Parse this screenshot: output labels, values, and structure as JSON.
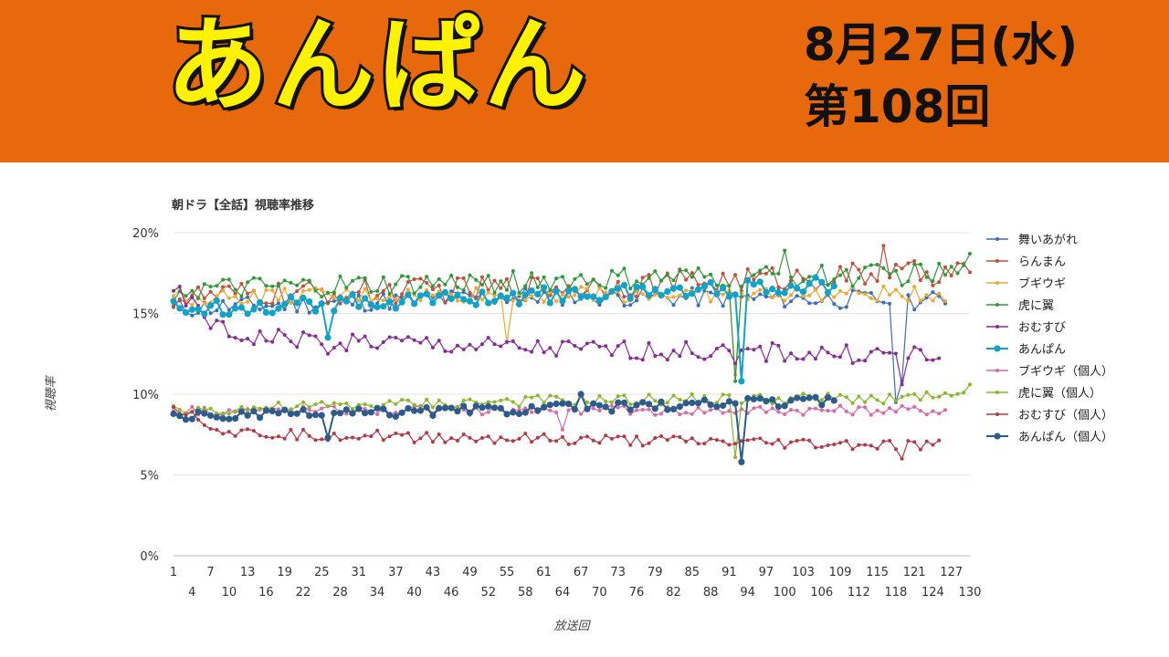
{
  "header": {
    "show_title": "あんぱん",
    "date": "8月27日(水)",
    "episode": "第108回"
  },
  "chart_data": {
    "type": "line",
    "title": "朝ドラ【全話】視聴率推移",
    "xlabel": "放送回",
    "ylabel": "視聴率",
    "ylim": [
      0,
      20
    ],
    "xlim": [
      1,
      130
    ],
    "y_ticks": [
      "0%",
      "5%",
      "10%",
      "15%",
      "20%"
    ],
    "x_ticks_row1": [
      1,
      7,
      13,
      19,
      25,
      31,
      37,
      43,
      49,
      55,
      61,
      67,
      73,
      79,
      85,
      91,
      97,
      103,
      109,
      115,
      121,
      127
    ],
    "x_ticks_row2": [
      4,
      10,
      16,
      22,
      28,
      34,
      40,
      46,
      52,
      58,
      64,
      70,
      76,
      82,
      88,
      94,
      100,
      106,
      112,
      118,
      124,
      130
    ],
    "grid": true,
    "legend_position": "right",
    "series": [
      {
        "name": "舞いあがれ",
        "color": "#3a6fb5",
        "count": 126,
        "base": 15.8,
        "trend": [
          [
            1,
            15.3
          ],
          [
            60,
            16.1
          ],
          [
            126,
            15.8
          ]
        ],
        "noise": 0.6,
        "dips": [
          [
            118,
            9.5
          ],
          [
            119,
            10.8
          ]
        ]
      },
      {
        "name": "らんまん",
        "color": "#c0503a",
        "count": 130,
        "base": 16.5,
        "trend": [
          [
            1,
            16.0
          ],
          [
            60,
            16.6
          ],
          [
            130,
            17.6
          ]
        ],
        "noise": 0.8,
        "dips": [
          [
            116,
            19.2
          ]
        ]
      },
      {
        "name": "ブギウギ",
        "color": "#f0a830",
        "count": 126,
        "base": 16.0,
        "trend": [
          [
            1,
            16.0
          ],
          [
            60,
            16.2
          ],
          [
            126,
            16.2
          ]
        ],
        "noise": 0.5,
        "dips": [
          [
            55,
            13.2
          ],
          [
            92,
            11.2
          ]
        ]
      },
      {
        "name": "虎に翼",
        "color": "#2e9a3a",
        "count": 130,
        "base": 16.7,
        "trend": [
          [
            1,
            16.4
          ],
          [
            60,
            17.0
          ],
          [
            130,
            17.5
          ]
        ],
        "noise": 0.7,
        "dips": [
          [
            92,
            10.8
          ],
          [
            100,
            18.9
          ],
          [
            130,
            18.7
          ]
        ]
      },
      {
        "name": "おむすび",
        "color": "#8a2a9a",
        "count": 125,
        "base": 13.0,
        "trend": [
          [
            1,
            16.4
          ],
          [
            10,
            13.6
          ],
          [
            60,
            12.8
          ],
          [
            125,
            12.4
          ]
        ],
        "noise": 0.6,
        "dips": [
          [
            26,
            12.5
          ],
          [
            92,
            11.9
          ],
          [
            119,
            10.6
          ]
        ]
      },
      {
        "name": "あんぱん",
        "color": "#10a3c8",
        "count": 108,
        "base": 15.8,
        "trend": [
          [
            1,
            15.3
          ],
          [
            60,
            16.1
          ],
          [
            108,
            16.8
          ]
        ],
        "noise": 0.5,
        "dips": [
          [
            26,
            13.5
          ],
          [
            93,
            10.8
          ]
        ]
      },
      {
        "name": "ブギウギ（個人）",
        "color": "#d86aa8",
        "count": 126,
        "base": 9.0,
        "trend": [
          [
            1,
            9.0
          ],
          [
            60,
            9.0
          ],
          [
            126,
            9.0
          ]
        ],
        "noise": 0.3,
        "dips": [
          [
            64,
            7.8
          ]
        ]
      },
      {
        "name": "虎に翼（個人）",
        "color": "#8ab82a",
        "count": 130,
        "base": 9.5,
        "trend": [
          [
            1,
            9.0
          ],
          [
            60,
            9.6
          ],
          [
            130,
            9.8
          ]
        ],
        "noise": 0.35,
        "dips": [
          [
            92,
            6.1
          ],
          [
            130,
            10.6
          ]
        ]
      },
      {
        "name": "おむすび（個人）",
        "color": "#b33a48",
        "count": 125,
        "base": 7.3,
        "trend": [
          [
            1,
            9.3
          ],
          [
            10,
            7.6
          ],
          [
            60,
            7.2
          ],
          [
            125,
            6.8
          ]
        ],
        "noise": 0.35,
        "dips": [
          [
            119,
            6.0
          ]
        ]
      },
      {
        "name": "あんぱん（個人）",
        "color": "#2d5b8a",
        "count": 108,
        "base": 8.8,
        "trend": [
          [
            1,
            8.6
          ],
          [
            60,
            9.1
          ],
          [
            108,
            9.6
          ]
        ],
        "noise": 0.3,
        "dips": [
          [
            26,
            7.3
          ],
          [
            67,
            10.0
          ],
          [
            93,
            5.8
          ]
        ]
      }
    ]
  }
}
